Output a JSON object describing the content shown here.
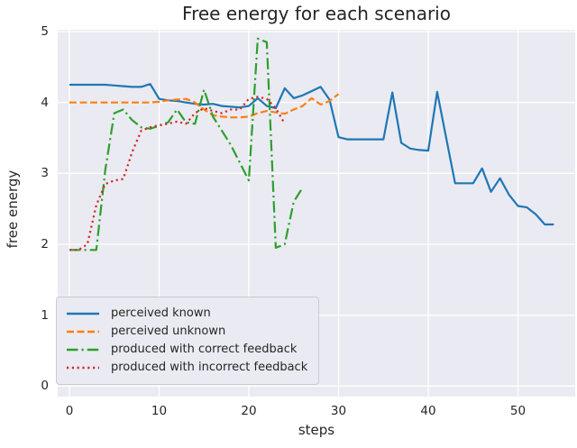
{
  "chart_data": {
    "type": "line",
    "title": "Free energy for each scenario",
    "xlabel": "steps",
    "ylabel": "free energy",
    "xticks": [
      0,
      10,
      20,
      30,
      40,
      50
    ],
    "yticks": [
      0,
      1,
      2,
      3,
      4,
      5
    ],
    "xlim": [
      -1.3,
      55.5
    ],
    "ylim": [
      0,
      5
    ],
    "grid": true,
    "plot_background": "#eaeaf2",
    "grid_color": "#ffffff",
    "legend_position": "lower left",
    "x0": 0,
    "dx": 1,
    "series": [
      {
        "name": "perceived known",
        "color": "#1f77b4",
        "style": "solid",
        "values": [
          4.25,
          4.25,
          4.25,
          4.25,
          4.25,
          4.24,
          4.23,
          4.22,
          4.22,
          4.26,
          4.05,
          4.03,
          4.02,
          4.0,
          3.98,
          3.97,
          3.98,
          3.95,
          3.94,
          3.93,
          3.95,
          4.06,
          3.95,
          3.92,
          4.2,
          4.06,
          4.1,
          4.16,
          4.22,
          4.04,
          3.51,
          3.48,
          3.48,
          3.48,
          3.48,
          3.48,
          4.14,
          3.43,
          3.35,
          3.33,
          3.32,
          4.15,
          3.5,
          2.86,
          2.86,
          2.86,
          3.07,
          2.74,
          2.93,
          2.7,
          2.54,
          2.52,
          2.42,
          2.28,
          2.28
        ]
      },
      {
        "name": "perceived unknown",
        "color": "#ff7f0e",
        "style": "dashed",
        "values": [
          4.0,
          4.0,
          4.0,
          4.0,
          4.0,
          4.0,
          4.0,
          4.0,
          4.0,
          4.0,
          4.01,
          4.03,
          4.04,
          4.05,
          4.0,
          3.9,
          3.82,
          3.8,
          3.79,
          3.79,
          3.8,
          3.85,
          3.88,
          3.86,
          3.84,
          3.9,
          3.95,
          4.06,
          3.97,
          4.02,
          4.12
        ]
      },
      {
        "name": "produced with correct feedback",
        "color": "#2ca02c",
        "style": "dashdot",
        "values": [
          1.92,
          1.92,
          1.92,
          1.92,
          3.05,
          3.85,
          3.9,
          3.75,
          3.65,
          3.63,
          3.67,
          3.72,
          3.9,
          3.72,
          3.7,
          4.18,
          3.8,
          3.6,
          3.4,
          3.15,
          2.9,
          4.9,
          4.85,
          1.95,
          2.0,
          2.6,
          2.8
        ]
      },
      {
        "name": "produced with incorrect feedback",
        "color": "#d62728",
        "style": "dotted",
        "values": [
          1.92,
          1.92,
          2.0,
          2.55,
          2.85,
          2.9,
          2.92,
          3.3,
          3.6,
          3.65,
          3.68,
          3.7,
          3.73,
          3.7,
          3.85,
          3.92,
          3.88,
          3.85,
          3.9,
          3.9,
          4.05,
          4.08,
          4.05,
          3.92,
          3.7
        ]
      }
    ]
  }
}
